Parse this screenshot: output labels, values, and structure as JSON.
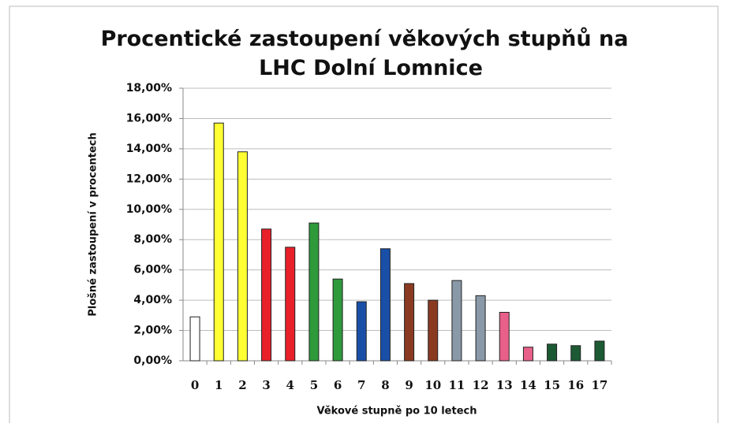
{
  "chart_data": {
    "type": "bar",
    "title": "Procentické zastoupení věkových stupňů na LHC Dolní Lomnice",
    "x_label": "Věkové stupně po 10 letech",
    "y_label": "Plošné zastoupení v procentech",
    "categories": [
      "0",
      "1",
      "2",
      "3",
      "4",
      "5",
      "6",
      "7",
      "8",
      "9",
      "10",
      "11",
      "12",
      "13",
      "14",
      "15",
      "16",
      "17"
    ],
    "values": [
      2.9,
      15.7,
      13.8,
      8.7,
      7.5,
      9.1,
      5.4,
      3.9,
      7.4,
      5.1,
      4.0,
      5.3,
      4.3,
      3.2,
      0.9,
      1.1,
      1.0,
      1.3
    ],
    "colors": [
      "#ffffff",
      "#ffff33",
      "#ffff33",
      "#e8202a",
      "#e8202a",
      "#2e9a3a",
      "#2e9a3a",
      "#1a4fa8",
      "#1a4fa8",
      "#8b3a22",
      "#8b3a22",
      "#8a99a8",
      "#8a99a8",
      "#e8608a",
      "#e8608a",
      "#1c5a34",
      "#1c5a34",
      "#1c5a34"
    ],
    "ylim": [
      0,
      18
    ],
    "yticks": [
      {
        "value": 0,
        "label": "0,00%"
      },
      {
        "value": 2,
        "label": "2,00%"
      },
      {
        "value": 4,
        "label": "4,00%"
      },
      {
        "value": 6,
        "label": "6,00%"
      },
      {
        "value": 8,
        "label": "8,00%"
      },
      {
        "value": 10,
        "label": "10,00%"
      },
      {
        "value": 12,
        "label": "12,00%"
      },
      {
        "value": 14,
        "label": "14,00%"
      },
      {
        "value": 16,
        "label": "16,00%"
      },
      {
        "value": 18,
        "label": "18,00%"
      }
    ],
    "grid": true
  }
}
